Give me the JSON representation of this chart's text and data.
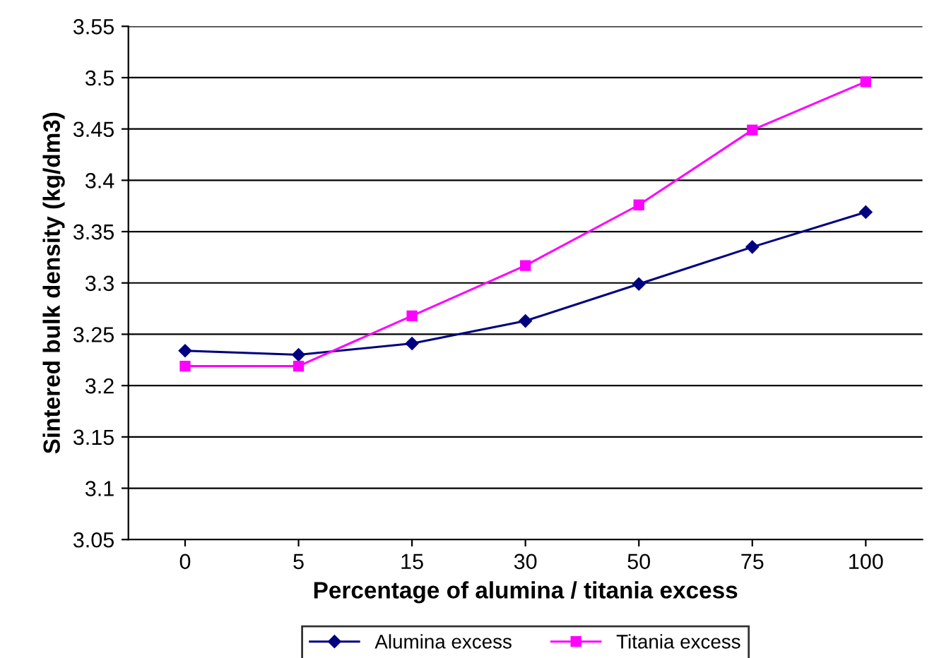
{
  "chart_data": {
    "type": "line",
    "xlabel": "Percentage of alumina / titania excess",
    "ylabel": "Sintered bulk density (kg/dm3)",
    "categories": [
      "0",
      "5",
      "15",
      "30",
      "50",
      "75",
      "100"
    ],
    "series": [
      {
        "name": "Alumina excess",
        "color": "#000080",
        "marker": "diamond",
        "values": [
          3.234,
          3.23,
          3.241,
          3.263,
          3.299,
          3.335,
          3.369
        ]
      },
      {
        "name": "Titania excess",
        "color": "#ff00ff",
        "marker": "square",
        "values": [
          3.219,
          3.219,
          3.268,
          3.317,
          3.376,
          3.449,
          3.496
        ]
      }
    ],
    "ylim": [
      3.05,
      3.55
    ],
    "yticks": [
      3.05,
      3.1,
      3.15,
      3.2,
      3.25,
      3.3,
      3.35,
      3.4,
      3.45,
      3.5,
      3.55
    ],
    "grid": "y",
    "legend": "bottom",
    "line_style": "solid"
  }
}
